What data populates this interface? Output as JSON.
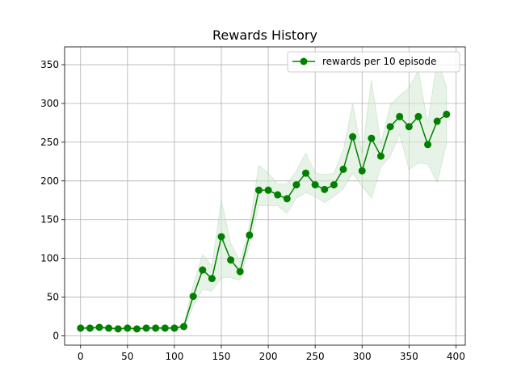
{
  "chart_data": {
    "type": "line",
    "title": "Rewards History",
    "xlabel": "",
    "ylabel": "",
    "xlim": [
      -17,
      410
    ],
    "ylim": [
      -12,
      373
    ],
    "xticks": [
      0,
      50,
      100,
      150,
      200,
      250,
      300,
      350,
      400
    ],
    "yticks": [
      0,
      50,
      100,
      150,
      200,
      250,
      300,
      350
    ],
    "grid": true,
    "legend": {
      "position": "top-right"
    },
    "colors": {
      "line": "#008000",
      "band": "#d4ead4",
      "grid": "#b0b0b0"
    },
    "series": [
      {
        "name": "rewards per 10 episode",
        "x": [
          0,
          10,
          20,
          30,
          40,
          50,
          60,
          70,
          80,
          90,
          100,
          110,
          120,
          130,
          140,
          150,
          160,
          170,
          180,
          190,
          200,
          210,
          220,
          230,
          240,
          250,
          260,
          270,
          280,
          290,
          300,
          310,
          320,
          330,
          340,
          350,
          360,
          370,
          380,
          390
        ],
        "y": [
          10,
          10,
          11,
          10,
          9,
          10,
          9,
          10,
          10,
          10,
          10,
          12,
          51,
          85,
          74,
          128,
          98,
          83,
          130,
          188,
          188,
          182,
          177,
          195,
          210,
          195,
          189,
          195,
          215,
          257,
          213,
          255,
          232,
          270,
          283,
          270,
          283,
          247,
          277,
          286
        ],
        "lower": [
          8,
          8,
          9,
          8,
          7,
          8,
          7,
          8,
          8,
          8,
          8,
          9,
          38,
          60,
          58,
          75,
          75,
          72,
          118,
          168,
          168,
          168,
          158,
          178,
          185,
          180,
          172,
          180,
          190,
          210,
          193,
          178,
          218,
          232,
          260,
          215,
          223,
          222,
          198,
          248
        ],
        "upper": [
          12,
          12,
          13,
          12,
          11,
          12,
          11,
          12,
          12,
          12,
          12,
          15,
          65,
          105,
          90,
          175,
          120,
          95,
          142,
          220,
          210,
          196,
          196,
          213,
          236,
          210,
          208,
          210,
          240,
          300,
          235,
          330,
          248,
          298,
          310,
          320,
          343,
          274,
          356,
          322
        ]
      }
    ]
  }
}
